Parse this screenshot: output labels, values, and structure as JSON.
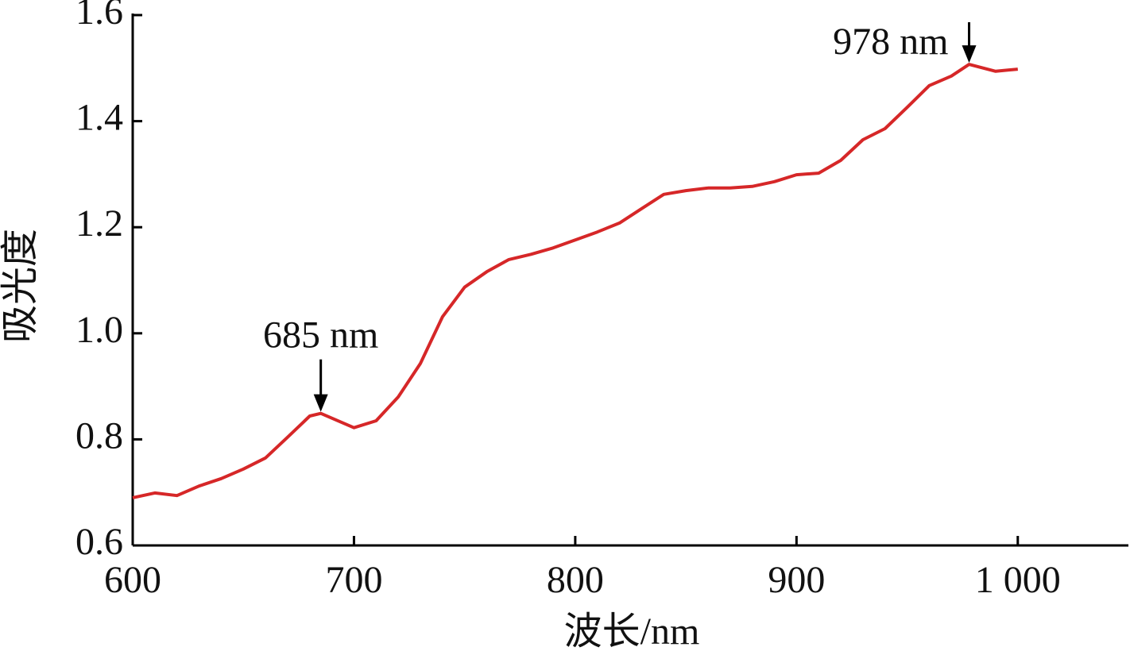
{
  "chart_data": {
    "type": "line",
    "xlabel": "波长/nm",
    "ylabel": "吸光度",
    "xlim": [
      600,
      1050
    ],
    "xticks": [
      600,
      700,
      800,
      900,
      {
        "value": 1000,
        "label": "1 000"
      }
    ],
    "ylim": [
      0.6,
      1.6
    ],
    "yticks": [
      0.6,
      0.8,
      {
        "value": 1,
        "label": "1.0"
      },
      1.2,
      1.4,
      1.6
    ],
    "series": [
      {
        "color": "#d62728",
        "x": [
          600,
          610,
          620,
          630,
          640,
          650,
          660,
          670,
          680,
          685,
          690,
          700,
          710,
          720,
          730,
          740,
          750,
          760,
          770,
          780,
          790,
          800,
          810,
          820,
          830,
          840,
          850,
          860,
          870,
          880,
          890,
          900,
          910,
          920,
          930,
          940,
          950,
          960,
          970,
          978,
          990,
          1000
        ],
        "values": [
          0.69,
          0.699,
          0.694,
          0.712,
          0.726,
          0.744,
          0.765,
          0.804,
          0.844,
          0.849,
          0.84,
          0.822,
          0.835,
          0.88,
          0.943,
          1.031,
          1.087,
          1.116,
          1.139,
          1.149,
          1.161,
          1.176,
          1.191,
          1.208,
          1.235,
          1.262,
          1.269,
          1.274,
          1.274,
          1.277,
          1.286,
          1.299,
          1.302,
          1.326,
          1.365,
          1.386,
          1.426,
          1.467,
          1.485,
          1.507,
          1.494,
          1.498
        ]
      }
    ],
    "annotations": [
      {
        "text": "685 nm",
        "x": 685
      },
      {
        "text": "978 nm",
        "x": 978
      }
    ]
  }
}
